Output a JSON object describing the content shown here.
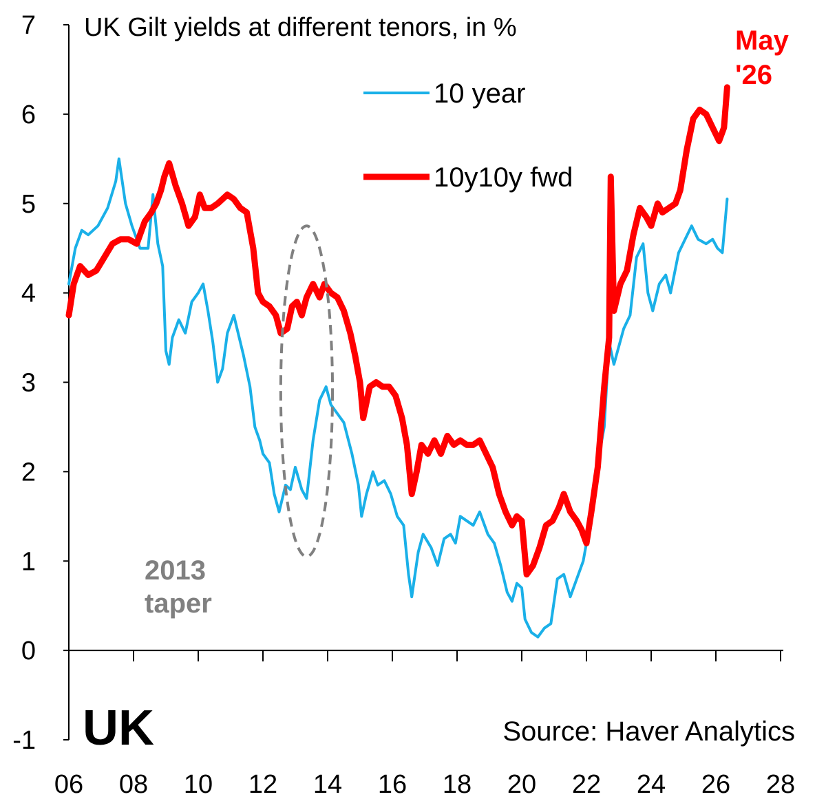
{
  "chart_data": {
    "type": "line",
    "title": "UK Gilt yields at different tenors, in %",
    "xlabel": "",
    "ylabel": "",
    "xlim": [
      2006,
      2028
    ],
    "ylim": [
      -1,
      7
    ],
    "x_ticks": [
      2006,
      2008,
      2010,
      2012,
      2014,
      2016,
      2018,
      2020,
      2022,
      2024,
      2026,
      2028
    ],
    "x_tick_labels": [
      "06",
      "08",
      "10",
      "12",
      "14",
      "16",
      "18",
      "20",
      "22",
      "24",
      "26",
      "28"
    ],
    "y_ticks": [
      -1,
      0,
      1,
      2,
      3,
      4,
      5,
      6,
      7
    ],
    "y_tick_labels": [
      "-1",
      "0",
      "1",
      "2",
      "3",
      "4",
      "5",
      "6",
      "7"
    ],
    "grid": false,
    "legend_position": "top-right",
    "series": [
      {
        "name": "10 year",
        "color": "#1ab0e8",
        "points": [
          [
            2006.0,
            4.1
          ],
          [
            2006.2,
            4.5
          ],
          [
            2006.4,
            4.7
          ],
          [
            2006.6,
            4.65
          ],
          [
            2006.9,
            4.75
          ],
          [
            2007.2,
            4.95
          ],
          [
            2007.45,
            5.25
          ],
          [
            2007.55,
            5.5
          ],
          [
            2007.75,
            5.0
          ],
          [
            2007.95,
            4.75
          ],
          [
            2008.2,
            4.5
          ],
          [
            2008.45,
            4.5
          ],
          [
            2008.6,
            5.1
          ],
          [
            2008.75,
            4.55
          ],
          [
            2008.9,
            4.3
          ],
          [
            2009.0,
            3.35
          ],
          [
            2009.1,
            3.2
          ],
          [
            2009.2,
            3.5
          ],
          [
            2009.4,
            3.7
          ],
          [
            2009.6,
            3.55
          ],
          [
            2009.8,
            3.9
          ],
          [
            2010.0,
            4.0
          ],
          [
            2010.15,
            4.1
          ],
          [
            2010.3,
            3.8
          ],
          [
            2010.45,
            3.45
          ],
          [
            2010.6,
            3.0
          ],
          [
            2010.75,
            3.15
          ],
          [
            2010.9,
            3.55
          ],
          [
            2011.1,
            3.75
          ],
          [
            2011.2,
            3.6
          ],
          [
            2011.4,
            3.3
          ],
          [
            2011.6,
            2.95
          ],
          [
            2011.75,
            2.5
          ],
          [
            2011.9,
            2.35
          ],
          [
            2012.0,
            2.2
          ],
          [
            2012.2,
            2.1
          ],
          [
            2012.35,
            1.75
          ],
          [
            2012.5,
            1.55
          ],
          [
            2012.7,
            1.85
          ],
          [
            2012.85,
            1.8
          ],
          [
            2013.0,
            2.05
          ],
          [
            2013.2,
            1.8
          ],
          [
            2013.35,
            1.7
          ],
          [
            2013.55,
            2.35
          ],
          [
            2013.75,
            2.8
          ],
          [
            2013.95,
            2.95
          ],
          [
            2014.1,
            2.75
          ],
          [
            2014.3,
            2.65
          ],
          [
            2014.5,
            2.55
          ],
          [
            2014.75,
            2.2
          ],
          [
            2014.95,
            1.85
          ],
          [
            2015.05,
            1.5
          ],
          [
            2015.2,
            1.75
          ],
          [
            2015.4,
            2.0
          ],
          [
            2015.55,
            1.85
          ],
          [
            2015.75,
            1.9
          ],
          [
            2015.95,
            1.75
          ],
          [
            2016.15,
            1.5
          ],
          [
            2016.35,
            1.4
          ],
          [
            2016.5,
            0.85
          ],
          [
            2016.6,
            0.6
          ],
          [
            2016.8,
            1.1
          ],
          [
            2016.95,
            1.3
          ],
          [
            2017.2,
            1.15
          ],
          [
            2017.4,
            0.95
          ],
          [
            2017.6,
            1.25
          ],
          [
            2017.8,
            1.3
          ],
          [
            2017.95,
            1.2
          ],
          [
            2018.1,
            1.5
          ],
          [
            2018.3,
            1.45
          ],
          [
            2018.5,
            1.4
          ],
          [
            2018.7,
            1.55
          ],
          [
            2018.95,
            1.3
          ],
          [
            2019.15,
            1.2
          ],
          [
            2019.35,
            0.95
          ],
          [
            2019.55,
            0.65
          ],
          [
            2019.7,
            0.55
          ],
          [
            2019.85,
            0.75
          ],
          [
            2020.0,
            0.7
          ],
          [
            2020.1,
            0.35
          ],
          [
            2020.3,
            0.2
          ],
          [
            2020.5,
            0.15
          ],
          [
            2020.7,
            0.25
          ],
          [
            2020.9,
            0.3
          ],
          [
            2021.1,
            0.8
          ],
          [
            2021.3,
            0.85
          ],
          [
            2021.5,
            0.6
          ],
          [
            2021.7,
            0.8
          ],
          [
            2021.9,
            1.0
          ],
          [
            2022.05,
            1.3
          ],
          [
            2022.2,
            1.75
          ],
          [
            2022.4,
            2.2
          ],
          [
            2022.55,
            2.5
          ],
          [
            2022.7,
            3.45
          ],
          [
            2022.85,
            3.2
          ],
          [
            2023.0,
            3.4
          ],
          [
            2023.15,
            3.6
          ],
          [
            2023.35,
            3.75
          ],
          [
            2023.55,
            4.4
          ],
          [
            2023.75,
            4.55
          ],
          [
            2023.9,
            4.0
          ],
          [
            2024.05,
            3.8
          ],
          [
            2024.25,
            4.1
          ],
          [
            2024.45,
            4.2
          ],
          [
            2024.6,
            4.0
          ],
          [
            2024.85,
            4.45
          ],
          [
            2025.05,
            4.6
          ],
          [
            2025.25,
            4.75
          ],
          [
            2025.45,
            4.6
          ],
          [
            2025.7,
            4.55
          ],
          [
            2025.9,
            4.6
          ],
          [
            2026.05,
            4.5
          ],
          [
            2026.2,
            4.45
          ],
          [
            2026.35,
            5.05
          ]
        ]
      },
      {
        "name": "10y10y fwd",
        "color": "#ff0000",
        "points": [
          [
            2006.0,
            3.75
          ],
          [
            2006.15,
            4.1
          ],
          [
            2006.35,
            4.3
          ],
          [
            2006.6,
            4.2
          ],
          [
            2006.85,
            4.25
          ],
          [
            2007.1,
            4.4
          ],
          [
            2007.35,
            4.55
          ],
          [
            2007.6,
            4.6
          ],
          [
            2007.85,
            4.6
          ],
          [
            2008.1,
            4.55
          ],
          [
            2008.35,
            4.8
          ],
          [
            2008.55,
            4.9
          ],
          [
            2008.7,
            5.0
          ],
          [
            2008.85,
            5.15
          ],
          [
            2008.95,
            5.3
          ],
          [
            2009.1,
            5.45
          ],
          [
            2009.3,
            5.2
          ],
          [
            2009.5,
            5.0
          ],
          [
            2009.7,
            4.75
          ],
          [
            2009.9,
            4.85
          ],
          [
            2010.05,
            5.1
          ],
          [
            2010.2,
            4.95
          ],
          [
            2010.4,
            4.95
          ],
          [
            2010.6,
            5.0
          ],
          [
            2010.75,
            5.05
          ],
          [
            2010.9,
            5.1
          ],
          [
            2011.1,
            5.05
          ],
          [
            2011.3,
            4.95
          ],
          [
            2011.5,
            4.9
          ],
          [
            2011.7,
            4.5
          ],
          [
            2011.85,
            4.0
          ],
          [
            2012.0,
            3.9
          ],
          [
            2012.2,
            3.85
          ],
          [
            2012.4,
            3.75
          ],
          [
            2012.55,
            3.55
          ],
          [
            2012.75,
            3.6
          ],
          [
            2012.9,
            3.85
          ],
          [
            2013.05,
            3.9
          ],
          [
            2013.2,
            3.75
          ],
          [
            2013.35,
            3.95
          ],
          [
            2013.55,
            4.1
          ],
          [
            2013.75,
            3.95
          ],
          [
            2013.9,
            4.1
          ],
          [
            2014.1,
            4.0
          ],
          [
            2014.3,
            3.95
          ],
          [
            2014.5,
            3.8
          ],
          [
            2014.7,
            3.55
          ],
          [
            2014.85,
            3.3
          ],
          [
            2015.0,
            3.0
          ],
          [
            2015.1,
            2.6
          ],
          [
            2015.3,
            2.95
          ],
          [
            2015.5,
            3.0
          ],
          [
            2015.7,
            2.95
          ],
          [
            2015.9,
            2.95
          ],
          [
            2016.1,
            2.85
          ],
          [
            2016.3,
            2.6
          ],
          [
            2016.45,
            2.3
          ],
          [
            2016.6,
            1.75
          ],
          [
            2016.75,
            2.0
          ],
          [
            2016.9,
            2.3
          ],
          [
            2017.1,
            2.2
          ],
          [
            2017.3,
            2.35
          ],
          [
            2017.5,
            2.2
          ],
          [
            2017.7,
            2.4
          ],
          [
            2017.9,
            2.3
          ],
          [
            2018.1,
            2.35
          ],
          [
            2018.3,
            2.3
          ],
          [
            2018.5,
            2.3
          ],
          [
            2018.7,
            2.35
          ],
          [
            2018.9,
            2.2
          ],
          [
            2019.1,
            2.05
          ],
          [
            2019.3,
            1.75
          ],
          [
            2019.5,
            1.55
          ],
          [
            2019.7,
            1.4
          ],
          [
            2019.85,
            1.5
          ],
          [
            2020.0,
            1.45
          ],
          [
            2020.15,
            0.85
          ],
          [
            2020.35,
            0.95
          ],
          [
            2020.55,
            1.15
          ],
          [
            2020.75,
            1.4
          ],
          [
            2020.95,
            1.45
          ],
          [
            2021.15,
            1.6
          ],
          [
            2021.3,
            1.75
          ],
          [
            2021.5,
            1.55
          ],
          [
            2021.7,
            1.45
          ],
          [
            2021.85,
            1.35
          ],
          [
            2022.0,
            1.2
          ],
          [
            2022.15,
            1.55
          ],
          [
            2022.35,
            2.05
          ],
          [
            2022.55,
            2.95
          ],
          [
            2022.7,
            3.5
          ],
          [
            2022.75,
            5.3
          ],
          [
            2022.85,
            3.8
          ],
          [
            2023.05,
            4.1
          ],
          [
            2023.25,
            4.25
          ],
          [
            2023.45,
            4.65
          ],
          [
            2023.65,
            4.95
          ],
          [
            2023.85,
            4.85
          ],
          [
            2024.0,
            4.75
          ],
          [
            2024.2,
            5.0
          ],
          [
            2024.35,
            4.9
          ],
          [
            2024.55,
            4.95
          ],
          [
            2024.75,
            5.0
          ],
          [
            2024.9,
            5.15
          ],
          [
            2025.1,
            5.6
          ],
          [
            2025.3,
            5.95
          ],
          [
            2025.5,
            6.05
          ],
          [
            2025.7,
            6.0
          ],
          [
            2025.9,
            5.85
          ],
          [
            2026.1,
            5.7
          ],
          [
            2026.25,
            5.85
          ],
          [
            2026.35,
            6.3
          ]
        ]
      }
    ],
    "annotations": [
      {
        "id": "latest",
        "lines": [
          "May",
          "'26"
        ],
        "color": "#ff0000"
      },
      {
        "id": "taper",
        "lines": [
          "2013",
          "taper"
        ],
        "color": "#808080"
      }
    ],
    "highlight_ellipse": {
      "x_center": 2013.35,
      "y_center": 2.9,
      "x_radius": 0.8,
      "y_radius": 1.85
    }
  },
  "panel": {
    "country_label": "UK",
    "source": "Source: Haver Analytics"
  }
}
